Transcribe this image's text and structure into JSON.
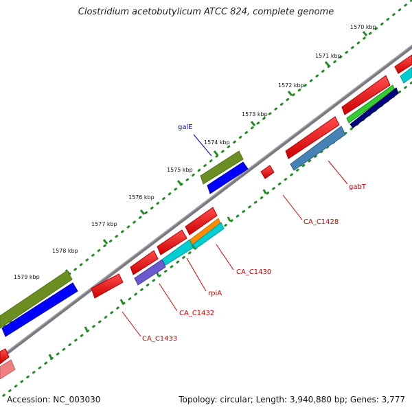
{
  "title": "Clostridium acetobutylicum ATCC 824, complete genome",
  "footer": {
    "accession": "Accession: NC_003030",
    "summary": "Topology: circular; Length: 3,940,880 bp; Genes: 3,777"
  },
  "ticks": {
    "t1570": "1570 kbp",
    "t1571": "1571 kbp",
    "t1572": "1572 kbp",
    "t1573": "1573 kbp",
    "t1574": "1574 kbp",
    "t1575": "1575 kbp",
    "t1576": "1576 kbp",
    "t1577": "1577 kbp",
    "t1578": "1578 kbp",
    "t1579": "1579 kbp"
  },
  "gene_labels": {
    "galE": "galE",
    "gabT": "gabT",
    "CA_C1428": "CA_C1428",
    "CA_C1430": "CA_C1430",
    "rpiA": "rpiA",
    "CA_C1432": "CA_C1432",
    "CA_C1433": "CA_C1433"
  },
  "colors": {
    "backbone": "#7a7a80",
    "cds_red": "#ff0000",
    "gene_blue": "#0000ff",
    "olive": "#6b8e23",
    "steelblue": "#4682b4",
    "cyan": "#00ced1",
    "purple": "#6a5acd",
    "green": "#32cd32",
    "navy": "#000080",
    "orange": "#ff8c00",
    "pink": "#f08080",
    "tick_green": "#228b22",
    "label_red": "#cc0000",
    "label_blue": "#0000cc"
  }
}
